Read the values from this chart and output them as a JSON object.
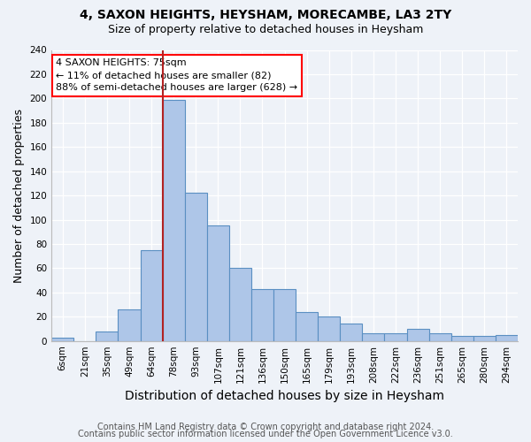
{
  "title1": "4, SAXON HEIGHTS, HEYSHAM, MORECAMBE, LA3 2TY",
  "title2": "Size of property relative to detached houses in Heysham",
  "xlabel": "Distribution of detached houses by size in Heysham",
  "ylabel": "Number of detached properties",
  "categories": [
    "6sqm",
    "21sqm",
    "35sqm",
    "49sqm",
    "64sqm",
    "78sqm",
    "93sqm",
    "107sqm",
    "121sqm",
    "136sqm",
    "150sqm",
    "165sqm",
    "179sqm",
    "193sqm",
    "208sqm",
    "222sqm",
    "236sqm",
    "251sqm",
    "265sqm",
    "280sqm",
    "294sqm"
  ],
  "values": [
    3,
    0,
    8,
    26,
    75,
    199,
    122,
    95,
    60,
    43,
    43,
    24,
    20,
    14,
    6,
    6,
    10,
    6,
    4,
    4,
    5
  ],
  "bar_color": "#aec6e8",
  "bar_edge_color": "#5a8fc2",
  "vline_x_index": 4.5,
  "marker_label": "4 SAXON HEIGHTS: 75sqm",
  "pct_smaller": "11% of detached houses are smaller (82)",
  "pct_larger": "88% of semi-detached houses are larger (628)",
  "annotation_box_color": "white",
  "annotation_box_edge": "red",
  "vline_color": "#b22222",
  "footnote1": "Contains HM Land Registry data © Crown copyright and database right 2024.",
  "footnote2": "Contains public sector information licensed under the Open Government Licence v3.0.",
  "bg_color": "#eef2f8",
  "ylim_max": 240,
  "yticks": [
    0,
    20,
    40,
    60,
    80,
    100,
    120,
    140,
    160,
    180,
    200,
    220,
    240
  ],
  "title1_fontsize": 10,
  "title2_fontsize": 9,
  "xlabel_fontsize": 10,
  "ylabel_fontsize": 9,
  "tick_fontsize": 7.5,
  "annot_fontsize": 8,
  "footnote_fontsize": 7
}
